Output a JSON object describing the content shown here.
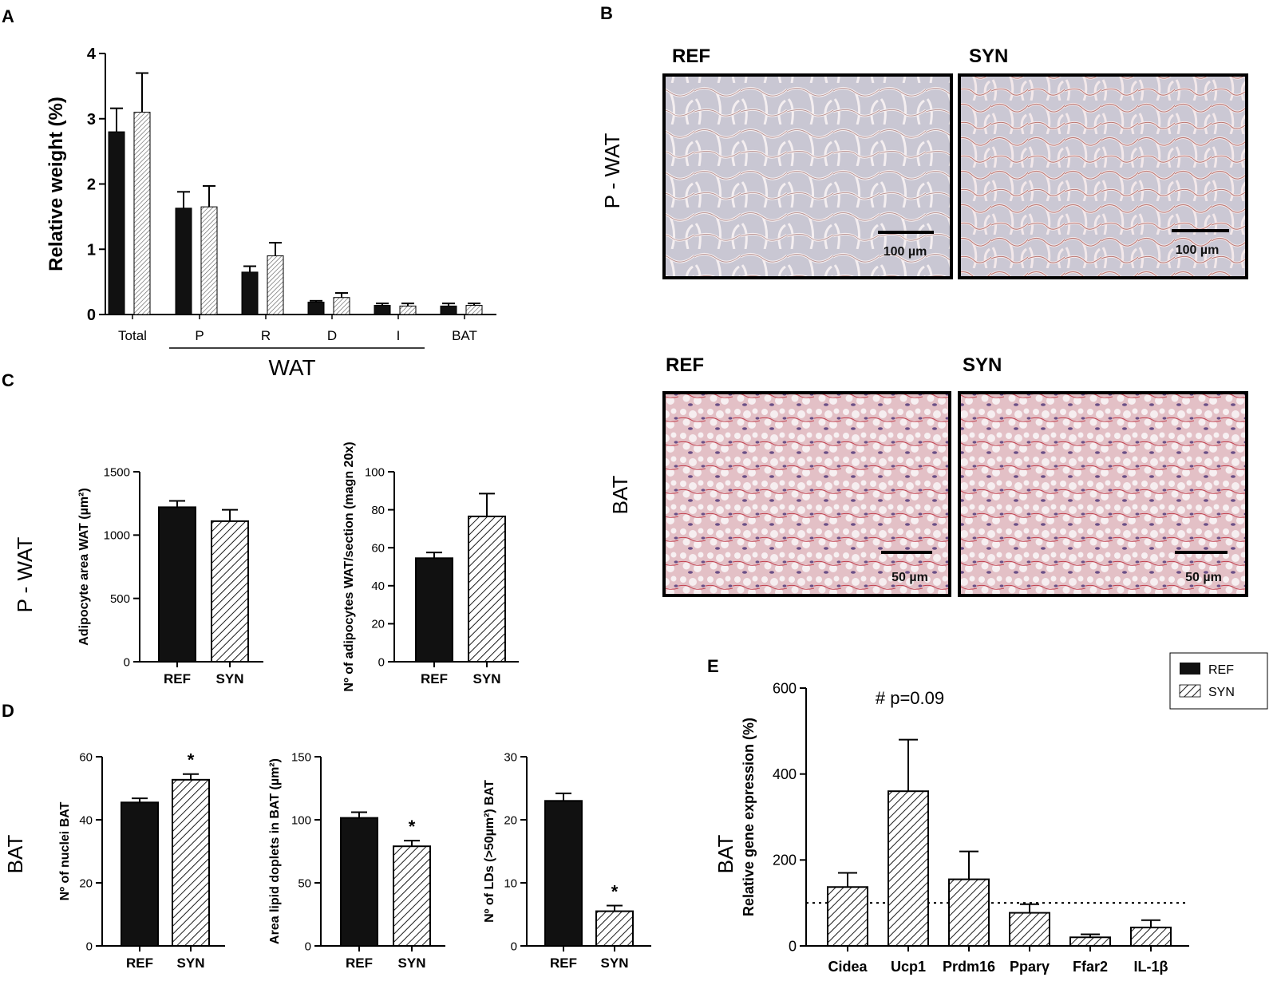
{
  "panels": {
    "A": "A",
    "B": "B",
    "C": "C",
    "D": "D",
    "E": "E"
  },
  "colors": {
    "ref": "#111111",
    "syn_hatch": "#000000",
    "wat_tissue": "#c9c6d2",
    "bat_tissue": "#e6c4cc"
  },
  "legend": {
    "ref": "REF",
    "syn": "SYN"
  },
  "histology": {
    "row1_label": "P - WAT",
    "row2_label": "BAT",
    "ref": "REF",
    "syn": "SYN",
    "scale_wat": "100 µm",
    "scale_bat": "50 µm"
  },
  "side_labels": {
    "c": "P - WAT",
    "d": "BAT",
    "e": "BAT"
  },
  "chart_data": [
    {
      "id": "A",
      "type": "bar",
      "ylabel": "Relative weight (%)",
      "ylim": [
        0,
        4
      ],
      "yticks": [
        "0",
        "1",
        "2",
        "3",
        "4"
      ],
      "categories": [
        "Total",
        "P",
        "R",
        "D",
        "I",
        "BAT"
      ],
      "group_label": "WAT",
      "series": [
        {
          "name": "REF",
          "values": [
            2.8,
            1.63,
            0.65,
            0.19,
            0.14,
            0.13
          ],
          "errors": [
            0.36,
            0.25,
            0.09,
            0.02,
            0.03,
            0.04
          ]
        },
        {
          "name": "SYN",
          "values": [
            3.1,
            1.65,
            0.9,
            0.26,
            0.13,
            0.14
          ],
          "errors": [
            0.6,
            0.32,
            0.2,
            0.07,
            0.04,
            0.03
          ]
        }
      ]
    },
    {
      "id": "C1",
      "type": "bar",
      "ylabel": "Adipocyte area WAT (µm²)",
      "ylim": [
        0,
        1500
      ],
      "yticks": [
        "0",
        "500",
        "1000",
        "1500"
      ],
      "categories": [
        "REF",
        "SYN"
      ],
      "values": [
        1220,
        1110
      ],
      "errors": [
        50,
        90
      ]
    },
    {
      "id": "C2",
      "type": "bar",
      "ylabel": "Nº of adipocytes WAT/section (magn 20x)",
      "ylim": [
        0,
        100
      ],
      "yticks": [
        "0",
        "20",
        "40",
        "60",
        "80",
        "100"
      ],
      "categories": [
        "REF",
        "SYN"
      ],
      "values": [
        54.5,
        76.5
      ],
      "errors": [
        3,
        12
      ]
    },
    {
      "id": "D1",
      "type": "bar",
      "ylabel": "Nº of nuclei BAT",
      "ylim": [
        0,
        60
      ],
      "yticks": [
        "0",
        "20",
        "40",
        "60"
      ],
      "categories": [
        "REF",
        "SYN"
      ],
      "values": [
        45.5,
        52.7
      ],
      "errors": [
        1.3,
        1.8
      ],
      "significance": [
        "",
        "*"
      ]
    },
    {
      "id": "D2",
      "type": "bar",
      "ylabel": "Area lipid doplets in BAT (µm²)",
      "ylim": [
        0,
        150
      ],
      "yticks": [
        "0",
        "50",
        "100",
        "150"
      ],
      "categories": [
        "REF",
        "SYN"
      ],
      "values": [
        101.5,
        79
      ],
      "errors": [
        4.5,
        4.5
      ],
      "significance": [
        "",
        "*"
      ]
    },
    {
      "id": "D3",
      "type": "bar",
      "ylabel": "Nº of LDs (>50µm²) BAT",
      "ylim": [
        0,
        30
      ],
      "yticks": [
        "0",
        "10",
        "20",
        "30"
      ],
      "categories": [
        "REF",
        "SYN"
      ],
      "values": [
        23,
        5.5
      ],
      "errors": [
        1.2,
        0.9
      ],
      "significance": [
        "",
        "*"
      ]
    },
    {
      "id": "E",
      "type": "bar",
      "ylabel": "Relative gene expression (%)",
      "ylim": [
        0,
        600
      ],
      "yticks": [
        "0",
        "200",
        "400",
        "600"
      ],
      "categories": [
        "Cidea",
        "Ucp1",
        "Prdm16",
        "Pparγ",
        "Ffar2",
        "IL-1β"
      ],
      "values": [
        137,
        360,
        155,
        77,
        20,
        43
      ],
      "errors": [
        33,
        120,
        65,
        20,
        7,
        17
      ],
      "reference_line": 100,
      "annotation": "# p=0.09"
    }
  ]
}
